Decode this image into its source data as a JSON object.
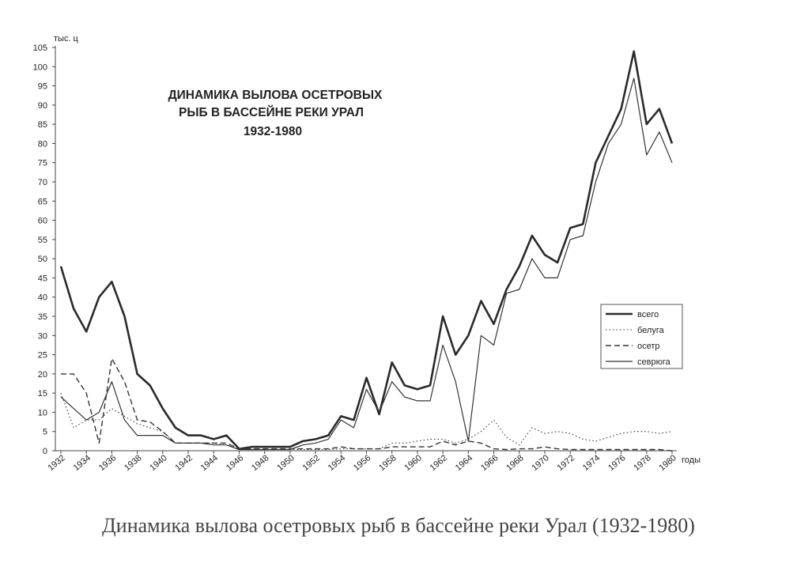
{
  "caption": "Динамика вылова осетровых рыб в бассейне реки Урал (1932-1980)",
  "chart_data": {
    "type": "line",
    "title_lines": [
      "ДИНАМИКА ВЫЛОВА ОСЕТРОВЫХ",
      "РЫБ В БАССЕЙНЕ РЕКИ УРАЛ",
      "1932-1980"
    ],
    "ylabel": "тыс. ц",
    "xlabel": "годы",
    "xlim": [
      1932,
      1980
    ],
    "ylim": [
      0,
      105
    ],
    "yticks": [
      0,
      5,
      10,
      15,
      20,
      25,
      30,
      35,
      40,
      45,
      50,
      55,
      60,
      65,
      70,
      75,
      80,
      85,
      90,
      95,
      100,
      105
    ],
    "xticks": [
      1932,
      1934,
      1936,
      1938,
      1940,
      1942,
      1944,
      1946,
      1948,
      1950,
      1952,
      1954,
      1956,
      1958,
      1960,
      1962,
      1964,
      1966,
      1968,
      1970,
      1972,
      1974,
      1976,
      1978,
      1980
    ],
    "grid": false,
    "legend_position": "right",
    "x": [
      1932,
      1933,
      1934,
      1935,
      1936,
      1937,
      1938,
      1939,
      1940,
      1941,
      1942,
      1943,
      1944,
      1945,
      1946,
      1947,
      1948,
      1949,
      1950,
      1951,
      1952,
      1953,
      1954,
      1955,
      1956,
      1957,
      1958,
      1959,
      1960,
      1961,
      1962,
      1963,
      1964,
      1965,
      1966,
      1967,
      1968,
      1969,
      1970,
      1971,
      1972,
      1973,
      1974,
      1975,
      1976,
      1977,
      1978,
      1979,
      1980
    ],
    "series": [
      {
        "name": "всего",
        "style": "bold",
        "values": [
          48,
          37,
          31,
          40,
          44,
          35,
          20,
          17,
          11,
          6,
          4,
          4,
          3,
          4,
          0.5,
          1,
          1,
          1,
          1,
          2.5,
          3,
          4,
          9,
          8,
          19,
          9.5,
          23,
          17,
          16,
          17,
          35,
          25,
          30,
          39,
          33,
          42,
          48,
          56,
          51,
          49,
          58,
          59,
          75,
          82,
          89,
          104,
          85,
          89,
          80
        ]
      },
      {
        "name": "белуга",
        "style": "dotted",
        "values": [
          15,
          6,
          8,
          8,
          11,
          9,
          7,
          6,
          5,
          2,
          2,
          2,
          2,
          1.5,
          0.3,
          0.3,
          0.3,
          0.3,
          0.3,
          0.3,
          0.3,
          0.3,
          0.5,
          0.5,
          0.5,
          0.5,
          2,
          2,
          2.5,
          3,
          3,
          2,
          3,
          5,
          8,
          3.5,
          1.5,
          6,
          4.5,
          5,
          4.5,
          3,
          2.5,
          3.5,
          4.5,
          5,
          5,
          4.5,
          5
        ]
      },
      {
        "name": "осетр",
        "style": "dashed",
        "values": [
          20,
          20,
          15,
          2,
          24,
          18,
          8,
          7.5,
          5,
          2,
          2,
          2,
          2,
          2,
          0.5,
          0.5,
          0.5,
          0.5,
          0.5,
          0.5,
          0.5,
          0.5,
          1,
          0.5,
          0.5,
          0.5,
          1,
          1,
          1,
          1,
          2.5,
          1.5,
          2.5,
          2,
          0.5,
          0.3,
          0.5,
          0.5,
          1,
          0.5,
          0.3,
          0.3,
          0.3,
          0.3,
          0.3,
          0.3,
          0.3,
          0.3,
          0
        ]
      },
      {
        "name": "севрюга",
        "style": "thin",
        "values": [
          14,
          11,
          8,
          10,
          18,
          8,
          4,
          4,
          4,
          2,
          2,
          2,
          1.5,
          1.5,
          0.3,
          0.3,
          0.3,
          0.3,
          0.3,
          1.5,
          2,
          3,
          8,
          6,
          16,
          10,
          18,
          14,
          13,
          13,
          27.5,
          18,
          2.5,
          30,
          27.5,
          41,
          42,
          50,
          45,
          45,
          55,
          56,
          70,
          80,
          85,
          97,
          77,
          83,
          75
        ]
      }
    ]
  }
}
